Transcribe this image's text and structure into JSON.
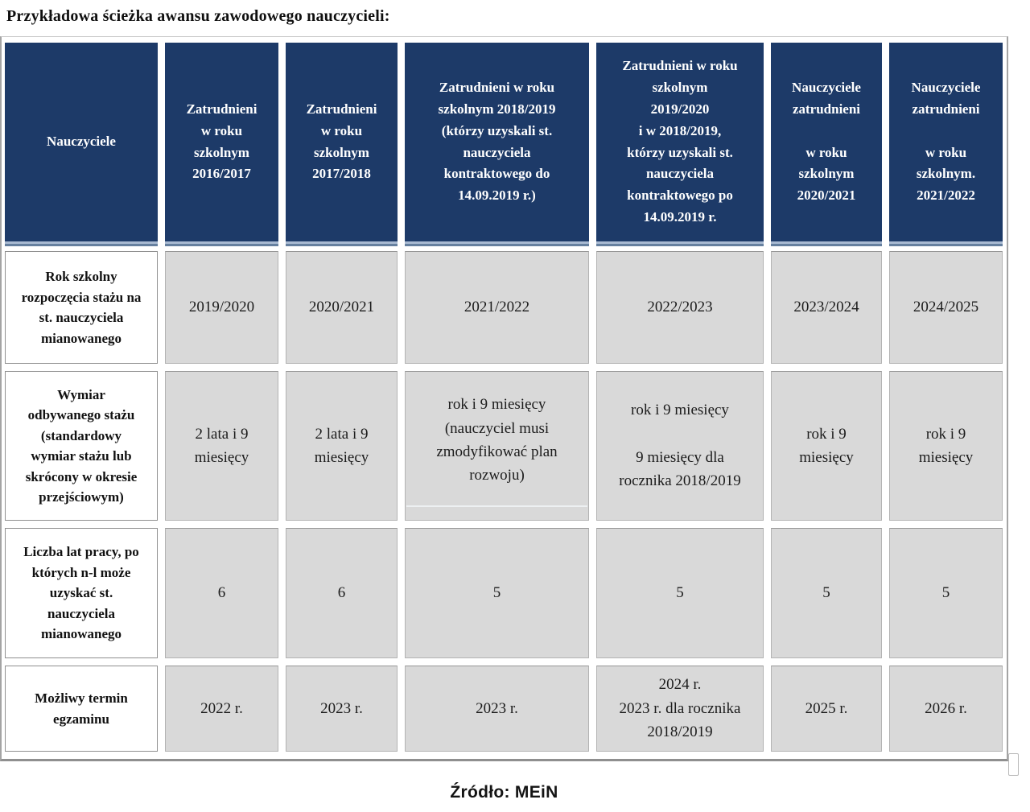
{
  "title": "Przykładowa ścieżka awansu zawodowego nauczycieli:",
  "source": "Źródło: MEiN",
  "colors": {
    "header_bg": "#1d3a68",
    "header_text": "#ffffff",
    "data_cell_bg": "#d9d9d9",
    "label_cell_bg": "#ffffff",
    "header_underline_light": "#a9bad2",
    "header_underline_dark": "#66809f",
    "table_border": "#a4a4a4"
  },
  "table": {
    "header": {
      "label": "Nauczyciele",
      "columns": [
        "Zatrudnieni\nw roku\nszkolnym\n2016/2017",
        "Zatrudnieni\nw roku\nszkolnym\n2017/2018",
        "Zatrudnieni w roku\nszkolnym 2018/2019\n(którzy uzyskali st.\nnauczyciela\nkontraktowego do\n14.09.2019 r.)",
        "Zatrudnieni w roku\nszkolnym\n2019/2020\ni w 2018/2019,\nktórzy uzyskali st.\nnauczyciela\nkontraktowego po\n14.09.2019 r.",
        "Nauczyciele\nzatrudnieni\n\nw roku\nszkolnym\n2020/2021",
        "Nauczyciele\nzatrudnieni\n\nw roku\nszkolnym.\n2021/2022"
      ]
    },
    "rows": [
      {
        "label": "Rok szkolny\nrozpoczęcia stażu na\nst. nauczyciela\nmianowanego",
        "cells": [
          "2019/2020",
          "2020/2021",
          "2021/2022",
          "2022/2023",
          "2023/2024",
          "2024/2025"
        ]
      },
      {
        "label": "Wymiar\nodbywanego stażu\n(standardowy\nwymiar stażu lub\nskrócony w okresie\nprzejściowym)",
        "cells": [
          "2 lata i 9\nmiesięcy",
          "2 lata i 9\nmiesięcy",
          "rok i 9 miesięcy\n(nauczyciel musi\nzmodyfikować plan\nrozwoju)",
          "rok i 9 miesięcy\n\n9 miesięcy dla\nrocznika 2018/2019",
          "rok i 9\nmiesięcy",
          "rok i 9\nmiesięcy"
        ]
      },
      {
        "label": "Liczba lat pracy, po\nktórych n-l może\nuzyskać st.\nnauczyciela\nmianowanego",
        "cells": [
          "6",
          "6",
          "5",
          "5",
          "5",
          "5"
        ]
      },
      {
        "label": "Możliwy termin\negzaminu",
        "cells": [
          "2022 r.",
          "2023 r.",
          "2023 r.",
          "2024 r.\n2023 r. dla rocznika\n2018/2019",
          "2025 r.",
          "2026 r."
        ]
      }
    ]
  }
}
